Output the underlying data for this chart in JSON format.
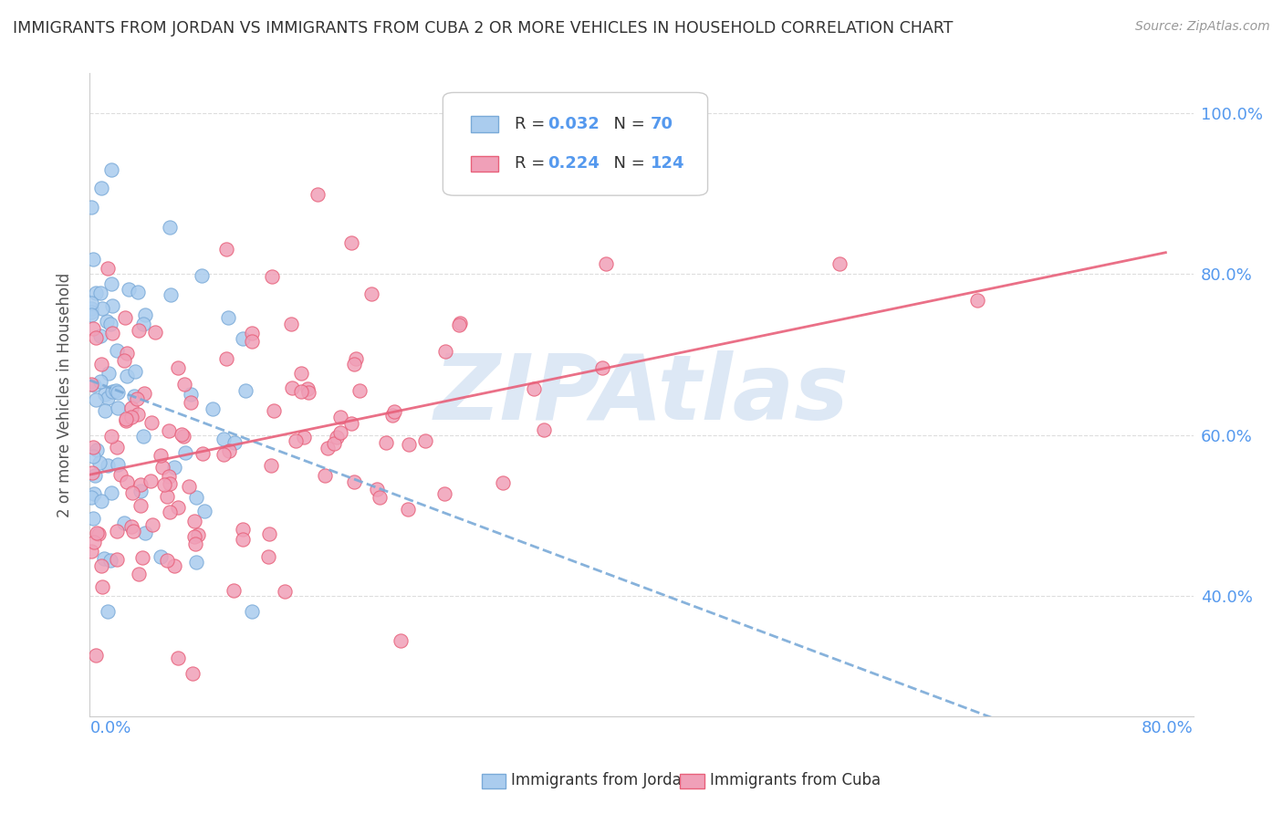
{
  "title": "IMMIGRANTS FROM JORDAN VS IMMIGRANTS FROM CUBA 2 OR MORE VEHICLES IN HOUSEHOLD CORRELATION CHART",
  "source": "Source: ZipAtlas.com",
  "ylabel": "2 or more Vehicles in Household",
  "background_color": "#ffffff",
  "R_jordan": 0.032,
  "N_jordan": 70,
  "R_cuba": 0.224,
  "N_cuba": 124,
  "xmin": 0.0,
  "xmax": 0.8,
  "ymin": 0.25,
  "ymax": 1.05,
  "jordan_scatter_color": "#aaccee",
  "cuba_scatter_color": "#f0a0b8",
  "jordan_line_color": "#7aaad8",
  "cuba_line_color": "#e8607a",
  "grid_color": "#dddddd",
  "tick_label_color": "#5599ee",
  "title_color": "#333333",
  "source_color": "#999999",
  "yticks": [
    0.4,
    0.6,
    0.8,
    1.0
  ],
  "ytick_labels": [
    "40.0%",
    "60.0%",
    "80.0%",
    "100.0%"
  ],
  "watermark_text": "ZIPAtlas",
  "watermark_color": "#dde8f5"
}
